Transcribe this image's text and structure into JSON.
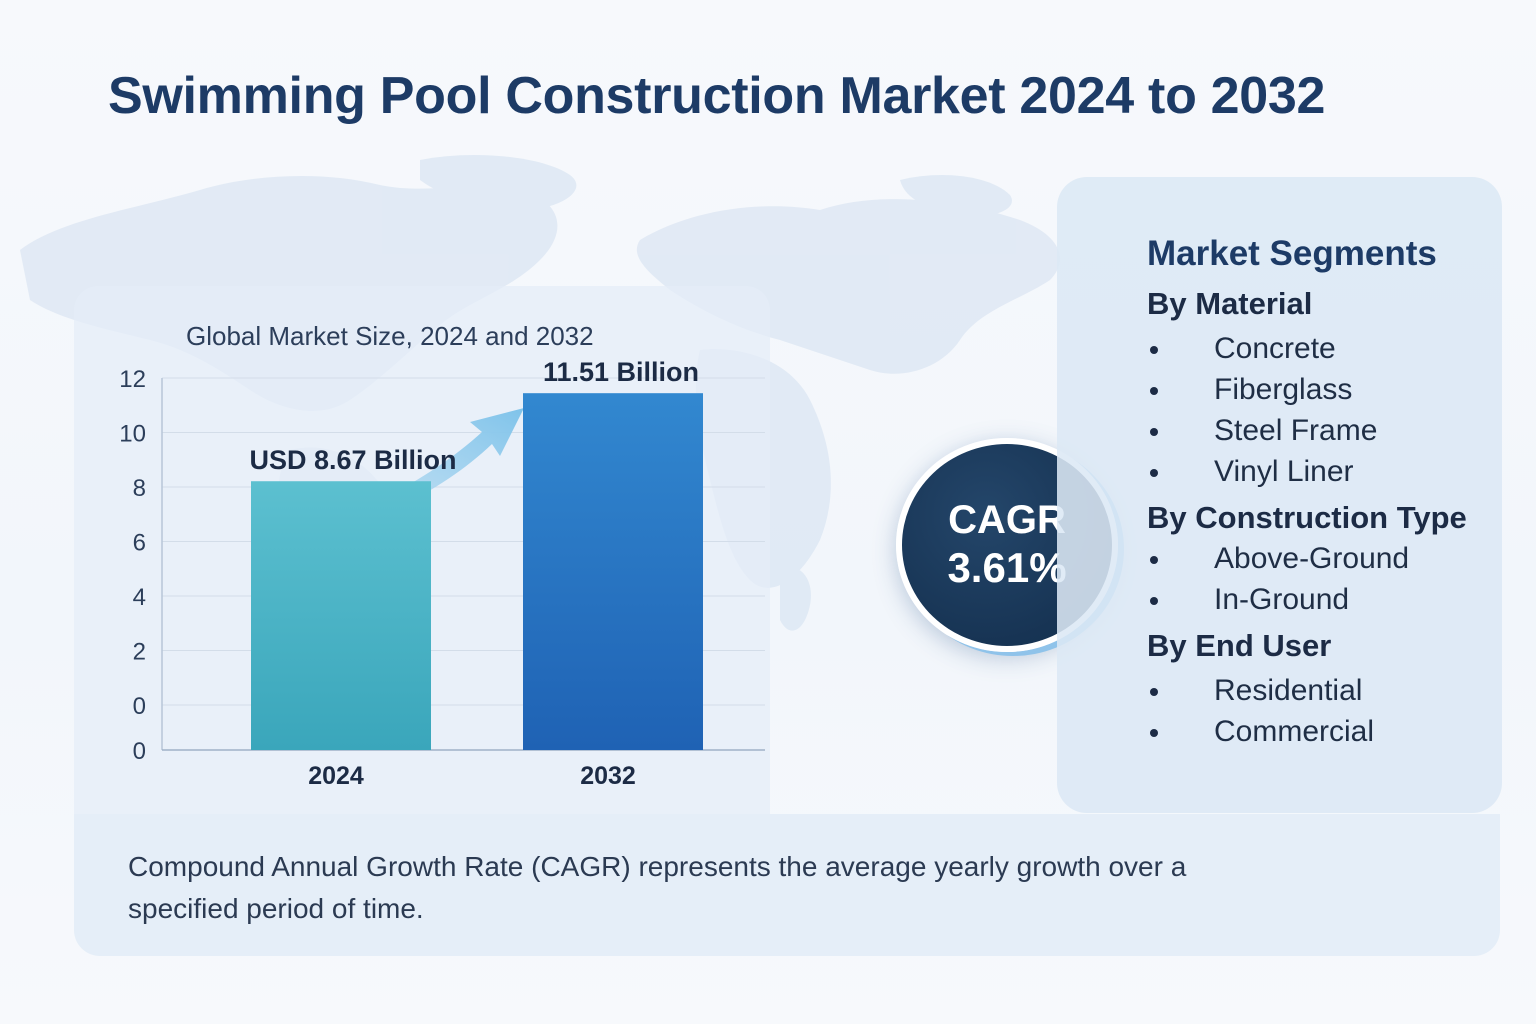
{
  "title": "Swimming Pool Construction Market 2024 to 2032",
  "chart_data": {
    "type": "bar",
    "subtitle": "Global Market Size, 2024 and 2032",
    "categories": [
      "2024",
      "2032"
    ],
    "values": [
      8.67,
      11.51
    ],
    "data_labels": [
      "USD 8.67 Billion",
      "11.51 Billion"
    ],
    "y_ticks": [
      "12",
      "10",
      "8",
      "6",
      "4",
      "2",
      "0",
      "0"
    ],
    "ylim": [
      0,
      12
    ],
    "grid": true,
    "bar_colors": [
      "#4bb8c9",
      "#2a72c2"
    ]
  },
  "cagr": {
    "label": "CAGR",
    "value": "3.61%"
  },
  "segments": {
    "title": "Market Segments",
    "groups": [
      {
        "title": "By Material",
        "items": [
          "Concrete",
          "Fiberglass",
          "Steel Frame",
          "Vinyl Liner"
        ]
      },
      {
        "title": "By Construction Type",
        "items": [
          "Above-Ground",
          "In-Ground"
        ]
      },
      {
        "title": "By End User",
        "items": [
          "Residential",
          "Commercial"
        ]
      }
    ]
  },
  "note": "Compound Annual Growth Rate (CAGR) represents the average yearly growth over a specified period of time.",
  "colors": {
    "title": "#1d3b66",
    "cagr_circle": "#173454",
    "panel": "#dfe9f5"
  }
}
